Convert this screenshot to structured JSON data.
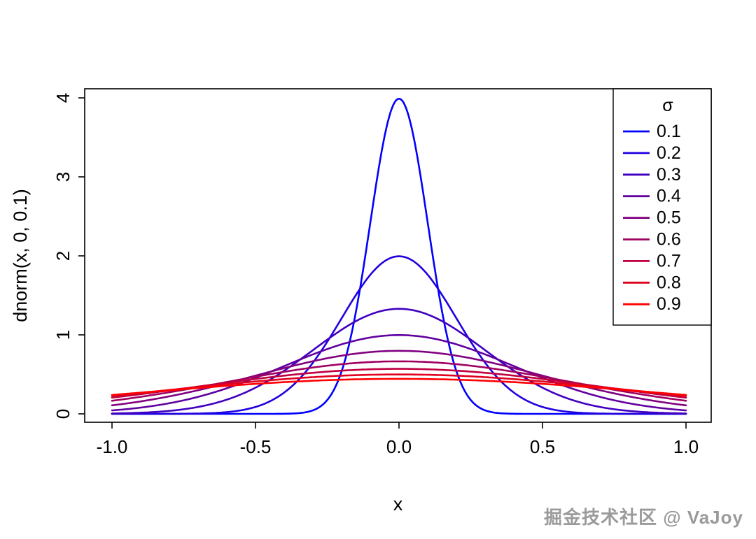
{
  "chart_data": {
    "type": "line",
    "title": "",
    "xlabel": "x",
    "ylabel": "dnorm(x, 0, 0.1)",
    "xlim": [
      -1.0,
      1.0
    ],
    "ylim": [
      0,
      4
    ],
    "grid": false,
    "x_ticks": [
      "-1.0",
      "-0.5",
      "0.0",
      "0.5",
      "1.0"
    ],
    "x_tick_values": [
      -1.0,
      -0.5,
      0.0,
      0.5,
      1.0
    ],
    "y_ticks": [
      "0",
      "1",
      "2",
      "3",
      "4"
    ],
    "y_tick_values": [
      0,
      1,
      2,
      3,
      4
    ],
    "function": "normal probability density: y = 1/(sigma*sqrt(2*pi)) * exp(-x^2/(2*sigma^2))",
    "x_plot_range": [
      -1.0,
      1.0
    ],
    "series": [
      {
        "name": "0.1",
        "sigma": 0.1,
        "peak": 3.989,
        "color": "#0000FF"
      },
      {
        "name": "0.2",
        "sigma": 0.2,
        "peak": 1.995,
        "color": "#2000DF"
      },
      {
        "name": "0.3",
        "sigma": 0.3,
        "peak": 1.33,
        "color": "#4000BF"
      },
      {
        "name": "0.4",
        "sigma": 0.4,
        "peak": 0.997,
        "color": "#60009F"
      },
      {
        "name": "0.5",
        "sigma": 0.5,
        "peak": 0.798,
        "color": "#800080"
      },
      {
        "name": "0.6",
        "sigma": 0.6,
        "peak": 0.665,
        "color": "#9F0060"
      },
      {
        "name": "0.7",
        "sigma": 0.7,
        "peak": 0.57,
        "color": "#BF0040"
      },
      {
        "name": "0.8",
        "sigma": 0.8,
        "peak": 0.499,
        "color": "#DF0020"
      },
      {
        "name": "0.9",
        "sigma": 0.9,
        "peak": 0.443,
        "color": "#FF0000"
      }
    ],
    "legend": {
      "title": "σ",
      "position": "topright",
      "entries": [
        "0.1",
        "0.2",
        "0.3",
        "0.4",
        "0.5",
        "0.6",
        "0.7",
        "0.8",
        "0.9"
      ]
    }
  },
  "watermark": "掘金技术社区 @ VaJoy"
}
